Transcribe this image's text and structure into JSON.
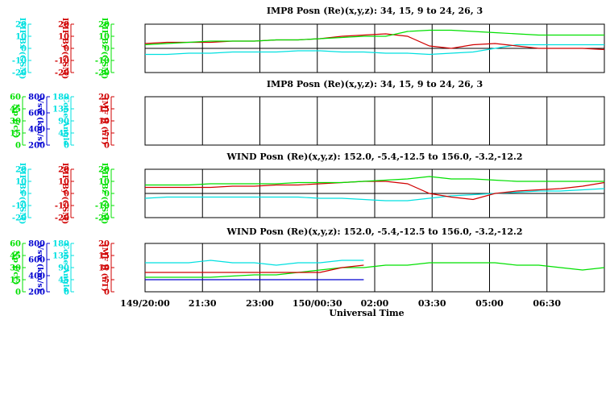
{
  "colors": {
    "green": "#00e000",
    "red": "#d00000",
    "cyan": "#00e0e0",
    "blue": "#0000d0",
    "black": "#000000"
  },
  "chart_data": {
    "type": "line",
    "xlabel": "Universal Time",
    "x_ticks": [
      "149/20:00",
      "21:30",
      "23:00",
      "150/00:30",
      "02:00",
      "03:30",
      "05:00",
      "06:30"
    ],
    "panels": [
      {
        "title": "IMP8 Posn (Re)(x,y,z):  34, 15,  9 to  24, 26,  3",
        "axes": [
          {
            "label": "IMF Bx (GSM)",
            "color": "cyan",
            "ticks": [
              "20",
              "10",
              "0",
              "-10",
              "-20"
            ]
          },
          {
            "label": "IMF By (GSM)",
            "color": "red",
            "ticks": [
              "20",
              "10",
              "0",
              "-10",
              "-20"
            ]
          },
          {
            "label": "IMF Bz (GSM)",
            "color": "green",
            "ticks": [
              "20",
              "10",
              "0",
              "-10",
              "-20"
            ]
          }
        ],
        "ylim": [
          -20,
          20
        ],
        "zero_line": true,
        "series": [
          {
            "name": "IMF Bx (GSM)",
            "color": "cyan",
            "values": [
              -5,
              -5,
              -4,
              -4,
              -3,
              -3,
              -3,
              -2,
              -2,
              -3,
              -3,
              -4,
              -4,
              -5,
              -4,
              -3,
              0,
              3,
              3,
              3,
              3,
              3
            ]
          },
          {
            "name": "IMF By (GSM)",
            "color": "red",
            "values": [
              4,
              5,
              5,
              5,
              6,
              6,
              7,
              7,
              8,
              10,
              11,
              12,
              10,
              2,
              0,
              3,
              4,
              2,
              0,
              0,
              0,
              -1
            ]
          },
          {
            "name": "IMF Bz (GSM)",
            "color": "green",
            "values": [
              3,
              4,
              5,
              6,
              6,
              6,
              7,
              7,
              8,
              9,
              10,
              10,
              14,
              15,
              15,
              14,
              13,
              12,
              11,
              11,
              11,
              11
            ]
          }
        ]
      },
      {
        "title": "IMP8 Posn (Re)(x,y,z):  34, 15,  9 to  24, 26,  3",
        "axes": [
          {
            "label": "Np (/cc)",
            "color": "green",
            "ticks": [
              "60",
              "45",
              "30",
              "15",
              "0"
            ]
          },
          {
            "label": "Vsw (km/s)",
            "color": "blue",
            "ticks": [
              "800",
              "600",
              "400",
              "200"
            ]
          },
          {
            "label": "Cone Angle",
            "color": "cyan",
            "ticks": [
              "180",
              "135",
              "90",
              "45",
              "0"
            ]
          },
          {
            "label": "IMF B (nT)",
            "color": "red",
            "ticks": [
              "20",
              "15",
              "10",
              "5",
              "0"
            ]
          }
        ],
        "ylim": [
          0,
          20
        ],
        "zero_line": false,
        "series": []
      },
      {
        "title": "WIND Posn (Re)(x,y,z): 152.0, -5.4,-12.5 to 156.0, -3.2,-12.2",
        "axes": [
          {
            "label": "IMF Bx (GSM)",
            "color": "cyan",
            "ticks": [
              "20",
              "10",
              "0",
              "-10",
              "-20"
            ]
          },
          {
            "label": "IMF By (GSM)",
            "color": "red",
            "ticks": [
              "20",
              "10",
              "0",
              "-10",
              "-20"
            ]
          },
          {
            "label": "IMF Bz (GSM)",
            "color": "green",
            "ticks": [
              "20",
              "10",
              "0",
              "-10",
              "-20"
            ]
          }
        ],
        "ylim": [
          -20,
          20
        ],
        "zero_line": true,
        "series": [
          {
            "name": "IMF Bx (GSM)",
            "color": "cyan",
            "values": [
              -4,
              -3,
              -3,
              -3,
              -3,
              -3,
              -3,
              -3,
              -4,
              -4,
              -5,
              -6,
              -6,
              -4,
              -2,
              -1,
              0,
              1,
              2,
              2,
              3,
              4
            ]
          },
          {
            "name": "IMF By (GSM)",
            "color": "red",
            "values": [
              5,
              5,
              5,
              5,
              6,
              6,
              7,
              7,
              8,
              9,
              10,
              10,
              8,
              0,
              -3,
              -5,
              0,
              2,
              3,
              4,
              6,
              9
            ]
          },
          {
            "name": "IMF Bz (GSM)",
            "color": "green",
            "values": [
              7,
              7,
              7,
              8,
              8,
              8,
              8,
              9,
              9,
              9,
              10,
              11,
              12,
              14,
              12,
              12,
              11,
              10,
              10,
              10,
              10,
              10
            ]
          }
        ]
      },
      {
        "title": "WIND Posn (Re)(x,y,z): 152.0, -5.4,-12.5 to 156.0, -3.2,-12.2",
        "axes": [
          {
            "label": "Np (/cc)",
            "color": "green",
            "ticks": [
              "60",
              "45",
              "30",
              "15",
              "0"
            ]
          },
          {
            "label": "Vsw (km/s)",
            "color": "blue",
            "ticks": [
              "800",
              "600",
              "400",
              "200"
            ]
          },
          {
            "label": "Cone Angle",
            "color": "cyan",
            "ticks": [
              "180",
              "135",
              "90",
              "45",
              "0"
            ]
          },
          {
            "label": "IMF B (nT)",
            "color": "red",
            "ticks": [
              "20",
              "15",
              "10",
              "5",
              "0"
            ]
          }
        ],
        "ylim": [
          0,
          20
        ],
        "zero_line": false,
        "series": [
          {
            "name": "Np (/cc)",
            "color": "green",
            "values": [
              6,
              6,
              6,
              6,
              6.5,
              7,
              7,
              8,
              9,
              10,
              10,
              11,
              11,
              12,
              12,
              12,
              12,
              11,
              11,
              10,
              9,
              10
            ]
          },
          {
            "name": "Vsw (km/s)",
            "color": "blue",
            "values": [
              5,
              5,
              5,
              5,
              5,
              5,
              5,
              5,
              5,
              5,
              5,
              null,
              null,
              null,
              null,
              null,
              null,
              null,
              null,
              null,
              null,
              null
            ]
          },
          {
            "name": "Cone Angle",
            "color": "cyan",
            "values": [
              12,
              12,
              12,
              13,
              12,
              12,
              11,
              12,
              12,
              13,
              13,
              null,
              null,
              null,
              null,
              null,
              null,
              null,
              null,
              null,
              null,
              null
            ]
          },
          {
            "name": "IMF B (nT)",
            "color": "red",
            "values": [
              8,
              8,
              8,
              8,
              8,
              8,
              8,
              8,
              8,
              10,
              11,
              null,
              null,
              null,
              null,
              null,
              null,
              null,
              null,
              null,
              null,
              null
            ]
          }
        ]
      }
    ]
  }
}
